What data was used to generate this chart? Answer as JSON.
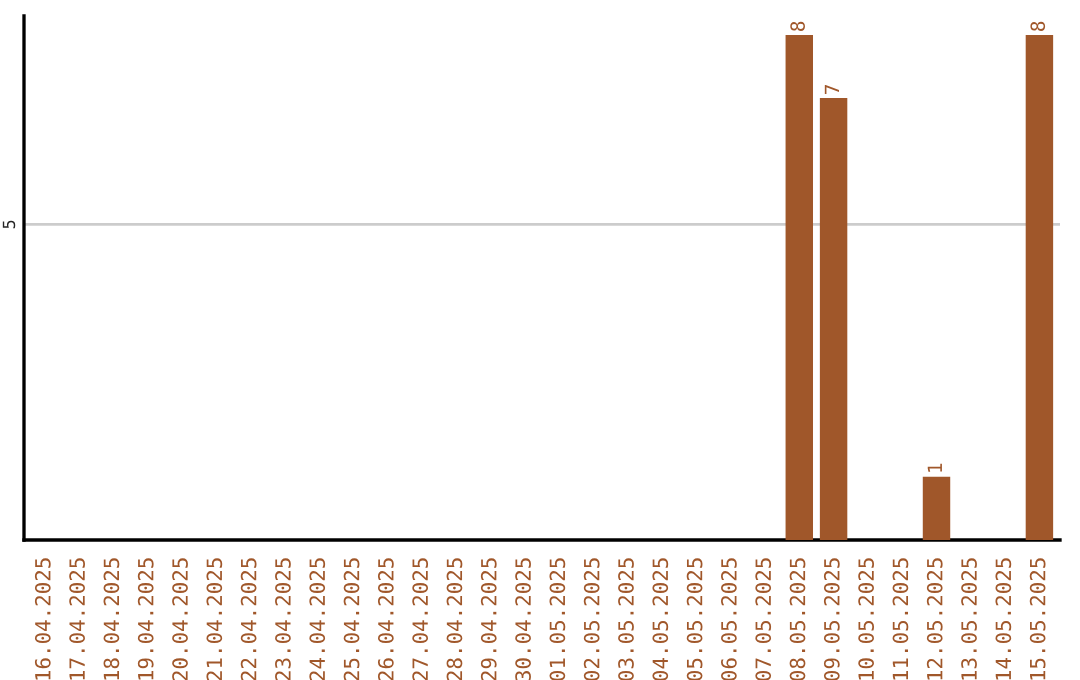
{
  "chart_data": {
    "type": "bar",
    "categories": [
      "16.04.2025",
      "17.04.2025",
      "18.04.2025",
      "19.04.2025",
      "20.04.2025",
      "21.04.2025",
      "22.04.2025",
      "23.04.2025",
      "24.04.2025",
      "25.04.2025",
      "26.04.2025",
      "27.04.2025",
      "28.04.2025",
      "29.04.2025",
      "30.04.2025",
      "01.05.2025",
      "02.05.2025",
      "03.05.2025",
      "04.05.2025",
      "05.05.2025",
      "06.05.2025",
      "07.05.2025",
      "08.05.2025",
      "09.05.2025",
      "10.05.2025",
      "11.05.2025",
      "12.05.2025",
      "13.05.2025",
      "14.05.2025",
      "15.05.2025"
    ],
    "values": [
      null,
      null,
      null,
      null,
      null,
      null,
      null,
      null,
      null,
      null,
      null,
      null,
      null,
      null,
      null,
      null,
      null,
      null,
      null,
      null,
      null,
      null,
      8,
      7,
      null,
      null,
      1,
      null,
      null,
      8
    ],
    "data_labels": true,
    "color": "#a0572a",
    "ylim": [
      0,
      8.3
    ],
    "yticks": [
      5
    ],
    "grid": "y"
  }
}
